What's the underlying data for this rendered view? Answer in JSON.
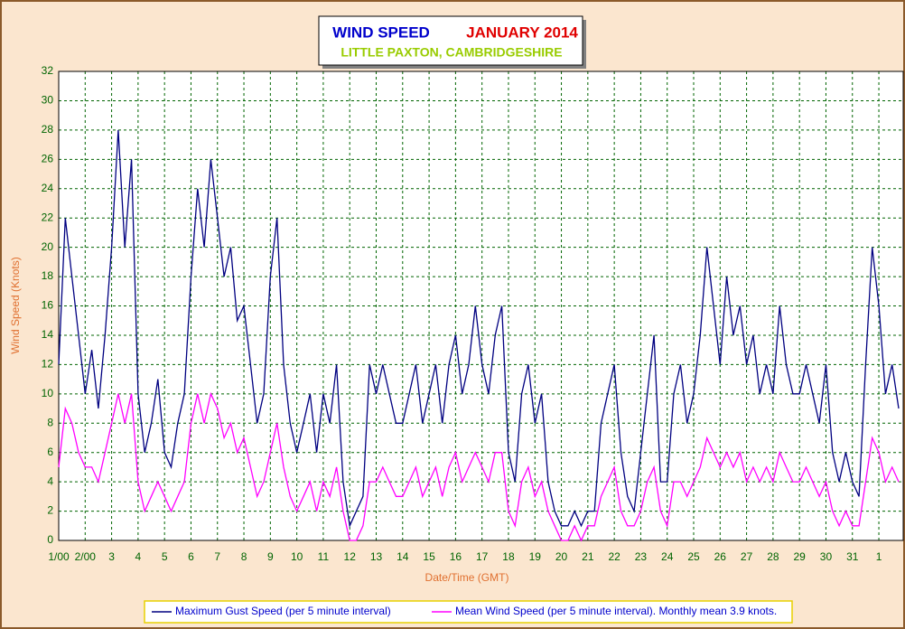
{
  "chart_data": {
    "type": "line",
    "title": "WIND SPEED",
    "title_date": "JANUARY 2014",
    "subtitle": "LITTLE PAXTON, CAMBRIDGESHIRE",
    "x_label": "Date/Time (GMT)",
    "y_label": "Wind Speed (Knots)",
    "xlim": [
      0,
      31.92
    ],
    "ylim": [
      0,
      32
    ],
    "grid": true,
    "legend": "bottom",
    "yticks": [
      0,
      2,
      4,
      6,
      8,
      10,
      12,
      14,
      16,
      18,
      20,
      22,
      24,
      26,
      28,
      30,
      32
    ],
    "xticks": [
      {
        "value": 0,
        "label": "1/00"
      },
      {
        "value": 1,
        "label": "2/00"
      },
      {
        "value": 2,
        "label": "3"
      },
      {
        "value": 3,
        "label": "4"
      },
      {
        "value": 4,
        "label": "5"
      },
      {
        "value": 5,
        "label": "6"
      },
      {
        "value": 6,
        "label": "7"
      },
      {
        "value": 7,
        "label": "8"
      },
      {
        "value": 8,
        "label": "9"
      },
      {
        "value": 9,
        "label": "10"
      },
      {
        "value": 10,
        "label": "11"
      },
      {
        "value": 11,
        "label": "12"
      },
      {
        "value": 12,
        "label": "13"
      },
      {
        "value": 13,
        "label": "14"
      },
      {
        "value": 14,
        "label": "15"
      },
      {
        "value": 15,
        "label": "16"
      },
      {
        "value": 16,
        "label": "17"
      },
      {
        "value": 17,
        "label": "18"
      },
      {
        "value": 18,
        "label": "19"
      },
      {
        "value": 19,
        "label": "20"
      },
      {
        "value": 20,
        "label": "21"
      },
      {
        "value": 21,
        "label": "22"
      },
      {
        "value": 22,
        "label": "23"
      },
      {
        "value": 23,
        "label": "24"
      },
      {
        "value": 24,
        "label": "25"
      },
      {
        "value": 25,
        "label": "26"
      },
      {
        "value": 26,
        "label": "27"
      },
      {
        "value": 27,
        "label": "28"
      },
      {
        "value": 28,
        "label": "29"
      },
      {
        "value": 29,
        "label": "30"
      },
      {
        "value": 30,
        "label": "31"
      },
      {
        "value": 31,
        "label": "1"
      }
    ],
    "x": [
      0,
      0.25,
      0.5,
      0.75,
      1,
      1.25,
      1.5,
      1.75,
      2,
      2.25,
      2.5,
      2.75,
      3,
      3.25,
      3.5,
      3.75,
      4,
      4.25,
      4.5,
      4.75,
      5,
      5.25,
      5.5,
      5.75,
      6,
      6.25,
      6.5,
      6.75,
      7,
      7.25,
      7.5,
      7.75,
      8,
      8.25,
      8.5,
      8.75,
      9,
      9.25,
      9.5,
      9.75,
      10,
      10.25,
      10.5,
      10.75,
      11,
      11.25,
      11.5,
      11.75,
      12,
      12.25,
      12.5,
      12.75,
      13,
      13.25,
      13.5,
      13.75,
      14,
      14.25,
      14.5,
      14.75,
      15,
      15.25,
      15.5,
      15.75,
      16,
      16.25,
      16.5,
      16.75,
      17,
      17.25,
      17.5,
      17.75,
      18,
      18.25,
      18.5,
      18.75,
      19,
      19.25,
      19.5,
      19.75,
      20,
      20.25,
      20.5,
      20.75,
      21,
      21.25,
      21.5,
      21.75,
      22,
      22.25,
      22.5,
      22.75,
      23,
      23.25,
      23.5,
      23.75,
      24,
      24.25,
      24.5,
      24.75,
      25,
      25.25,
      25.5,
      25.75,
      26,
      26.25,
      26.5,
      26.75,
      27,
      27.25,
      27.5,
      27.75,
      28,
      28.25,
      28.5,
      28.75,
      29,
      29.25,
      29.5,
      29.75,
      30,
      30.25,
      30.5,
      30.75,
      31,
      31.25,
      31.5,
      31.75
    ],
    "series": [
      {
        "name": "Maximum Gust Speed (per 5 minute interval)",
        "color": "#000080",
        "values": [
          12,
          22,
          18,
          14,
          10,
          13,
          9,
          14,
          20,
          28,
          20,
          26,
          10,
          6,
          8,
          11,
          6,
          5,
          8,
          10,
          18,
          24,
          20,
          26,
          22,
          18,
          20,
          15,
          16,
          12,
          8,
          10,
          18,
          22,
          12,
          8,
          6,
          8,
          10,
          6,
          10,
          8,
          12,
          4,
          1,
          2,
          3,
          12,
          10,
          12,
          10,
          8,
          8,
          10,
          12,
          8,
          10,
          12,
          8,
          12,
          14,
          10,
          12,
          16,
          12,
          10,
          14,
          16,
          6,
          4,
          10,
          12,
          8,
          10,
          4,
          2,
          1,
          1,
          2,
          1,
          2,
          2,
          8,
          10,
          12,
          6,
          3,
          2,
          6,
          10,
          14,
          4,
          4,
          10,
          12,
          8,
          10,
          14,
          20,
          16,
          12,
          18,
          14,
          16,
          12,
          14,
          10,
          12,
          10,
          16,
          12,
          10,
          10,
          12,
          10,
          8,
          12,
          6,
          4,
          6,
          4,
          3,
          12,
          20,
          16,
          10,
          12,
          9
        ]
      },
      {
        "name": "Mean Wind Speed (per 5 minute interval). Monthly mean 3.9 knots.",
        "color": "#ff00ff",
        "values": [
          5,
          9,
          8,
          6,
          5,
          5,
          4,
          6,
          8,
          10,
          8,
          10,
          4,
          2,
          3,
          4,
          3,
          2,
          3,
          4,
          8,
          10,
          8,
          10,
          9,
          7,
          8,
          6,
          7,
          5,
          3,
          4,
          6,
          8,
          5,
          3,
          2,
          3,
          4,
          2,
          4,
          3,
          5,
          2,
          0,
          0,
          1,
          4,
          4,
          5,
          4,
          3,
          3,
          4,
          5,
          3,
          4,
          5,
          3,
          5,
          6,
          4,
          5,
          6,
          5,
          4,
          6,
          6,
          2,
          1,
          4,
          5,
          3,
          4,
          2,
          1,
          0,
          0,
          1,
          0,
          1,
          1,
          3,
          4,
          5,
          2,
          1,
          1,
          2,
          4,
          5,
          2,
          1,
          4,
          4,
          3,
          4,
          5,
          7,
          6,
          5,
          6,
          5,
          6,
          4,
          5,
          4,
          5,
          4,
          6,
          5,
          4,
          4,
          5,
          4,
          3,
          4,
          2,
          1,
          2,
          1,
          1,
          4,
          7,
          6,
          4,
          5,
          4
        ]
      }
    ]
  }
}
